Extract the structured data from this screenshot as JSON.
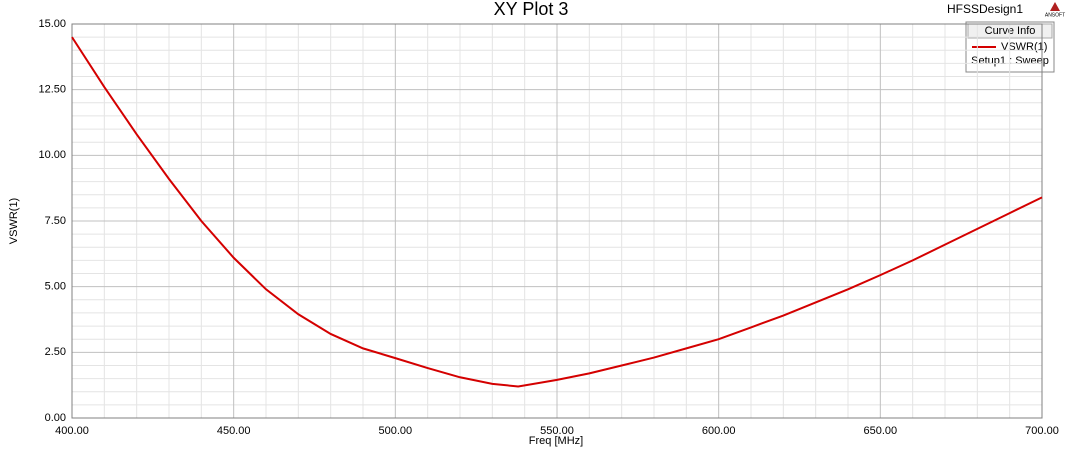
{
  "chart_data": {
    "type": "line",
    "title": "XY Plot 3",
    "design": "HFSSDesign1",
    "logo": "ANSOFT",
    "x_label": "Freq [MHz]",
    "y_label": "VSWR(1)",
    "legend_title": "Curve Info",
    "legend_subtitle": "Setup1 : Sweep",
    "x": [
      400,
      410,
      420,
      430,
      440,
      450,
      460,
      470,
      480,
      490,
      500,
      510,
      520,
      530,
      538,
      550,
      560,
      570,
      580,
      590,
      600,
      610,
      620,
      630,
      640,
      650,
      660,
      670,
      680,
      690,
      700
    ],
    "series": [
      {
        "name": "VSWR(1)",
        "color": "#d40000",
        "values": [
          14.5,
          12.6,
          10.8,
          9.1,
          7.5,
          6.1,
          4.9,
          3.95,
          3.2,
          2.65,
          2.28,
          1.9,
          1.55,
          1.3,
          1.2,
          1.45,
          1.7,
          2.0,
          2.3,
          2.65,
          3.0,
          3.45,
          3.9,
          4.4,
          4.9,
          5.44,
          6.0,
          6.6,
          7.2,
          7.8,
          8.4
        ]
      }
    ],
    "xlim": [
      400,
      700
    ],
    "xticks": [
      {
        "value": 400,
        "label": "400.00"
      },
      {
        "value": 450,
        "label": "450.00"
      },
      {
        "value": 500,
        "label": "500.00"
      },
      {
        "value": 550,
        "label": "550.00"
      },
      {
        "value": 600,
        "label": "600.00"
      },
      {
        "value": 650,
        "label": "650.00"
      },
      {
        "value": 700,
        "label": "700.00"
      }
    ],
    "ylim": [
      0,
      15
    ],
    "yticks": [
      {
        "value": 0,
        "label": "0.00"
      },
      {
        "value": 2.5,
        "label": "2.50"
      },
      {
        "value": 5,
        "label": "5.00"
      },
      {
        "value": 7.5,
        "label": "7.50"
      },
      {
        "value": 10,
        "label": "10.00"
      },
      {
        "value": 12.5,
        "label": "12.50"
      },
      {
        "value": 15,
        "label": "15.00"
      }
    ],
    "grid": true
  }
}
